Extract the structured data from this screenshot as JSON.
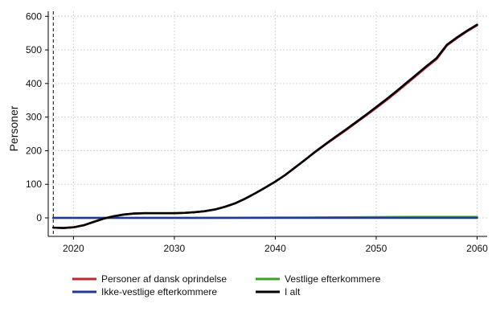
{
  "chart_data": {
    "type": "line",
    "title": "",
    "xlabel": "",
    "ylabel": "Personer",
    "xlim": [
      2017.5,
      2061
    ],
    "ylim": [
      -55,
      615
    ],
    "xticks": [
      2020,
      2030,
      2040,
      2050,
      2060
    ],
    "yticks": [
      0,
      100,
      200,
      300,
      400,
      500,
      600
    ],
    "grid": true,
    "reference_line_x": 2018,
    "legend_position": "bottom",
    "series": [
      {
        "name": "Personer af dansk oprindelse",
        "color": "#c0262d",
        "x": [
          2018,
          2019,
          2020,
          2021,
          2022,
          2023,
          2024,
          2025,
          2026,
          2027,
          2028,
          2029,
          2030,
          2031,
          2032,
          2033,
          2034,
          2035,
          2036,
          2037,
          2038,
          2039,
          2040,
          2041,
          2042,
          2043,
          2044,
          2045,
          2046,
          2047,
          2048,
          2049,
          2050,
          2051,
          2052,
          2053,
          2054,
          2055,
          2056,
          2057,
          2058,
          2059,
          2060
        ],
        "y": [
          -29,
          -30,
          -28,
          -22,
          -12,
          -2,
          5,
          10,
          13,
          14,
          14,
          14,
          14,
          15,
          17,
          20,
          25,
          33,
          43,
          57,
          73,
          90,
          108,
          128,
          151,
          174,
          197,
          219,
          240,
          261,
          283,
          305,
          327,
          350,
          374,
          399,
          424,
          449,
          473,
          513,
          535,
          555,
          573
        ]
      },
      {
        "name": "Ikke-vestlige efterkommere",
        "color": "#1f3a93",
        "x": [
          2018,
          2024,
          2030,
          2036,
          2042,
          2048,
          2054,
          2060
        ],
        "y": [
          0,
          0,
          0,
          0,
          0,
          0,
          0,
          0
        ]
      },
      {
        "name": "Vestlige efterkommere",
        "color": "#3aa02a",
        "x": [
          2018,
          2024,
          2030,
          2036,
          2042,
          2048,
          2054,
          2060
        ],
        "y": [
          0,
          0,
          0,
          0.5,
          1,
          2,
          3,
          3
        ]
      },
      {
        "name": "I alt",
        "color": "#000000",
        "x": [
          2018,
          2019,
          2020,
          2021,
          2022,
          2023,
          2024,
          2025,
          2026,
          2027,
          2028,
          2029,
          2030,
          2031,
          2032,
          2033,
          2034,
          2035,
          2036,
          2037,
          2038,
          2039,
          2040,
          2041,
          2042,
          2043,
          2044,
          2045,
          2046,
          2047,
          2048,
          2049,
          2050,
          2051,
          2052,
          2053,
          2054,
          2055,
          2056,
          2057,
          2058,
          2059,
          2060
        ],
        "y": [
          -29,
          -30,
          -28,
          -22,
          -12,
          -2,
          5,
          10,
          13,
          14,
          14,
          14,
          14,
          15,
          17,
          20,
          25,
          33,
          43,
          57,
          73,
          90,
          108,
          128,
          151,
          174,
          198,
          220,
          242,
          263,
          285,
          307,
          330,
          353,
          377,
          402,
          427,
          452,
          476,
          515,
          537,
          557,
          575
        ]
      }
    ]
  }
}
